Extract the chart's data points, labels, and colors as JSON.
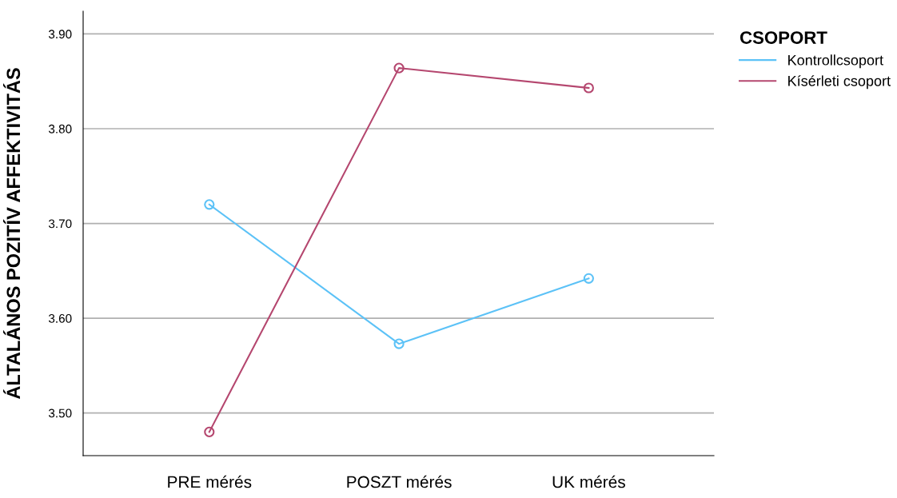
{
  "chart_data": {
    "type": "line",
    "ylabel": "ÁLTALÁNOS POZITÍV AFFEKTIVITÁS",
    "legend_title": "CSOPORT",
    "categories": [
      "PRE mérés",
      "POSZT mérés",
      "UK mérés"
    ],
    "series": [
      {
        "name": "Kontrollcsoport",
        "color": "#5cc2f7",
        "values": [
          3.72,
          3.573,
          3.642
        ]
      },
      {
        "name": "Kísérleti csoport",
        "color": "#b5476f",
        "values": [
          3.48,
          3.864,
          3.843
        ]
      }
    ],
    "ylim": [
      3.455,
      3.924
    ],
    "yticks": [
      {
        "value": 3.5,
        "label": "3.50"
      },
      {
        "value": 3.6,
        "label": "3.60"
      },
      {
        "value": 3.7,
        "label": "3.70"
      },
      {
        "value": 3.8,
        "label": "3.80"
      },
      {
        "value": 3.9,
        "label": "3.90"
      }
    ],
    "grid": "y",
    "legend": "top right",
    "marker": "circle",
    "line_style": "solid"
  }
}
